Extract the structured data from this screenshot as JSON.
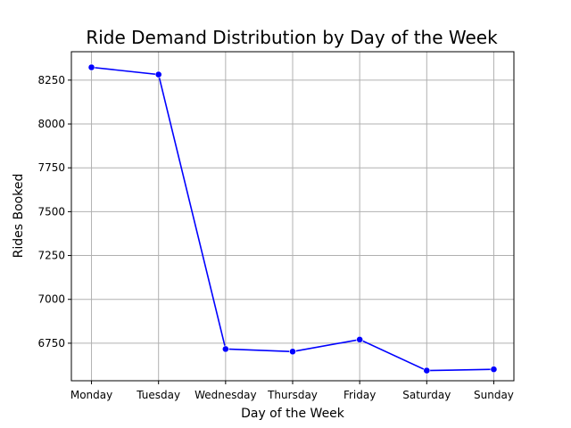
{
  "chart_data": {
    "type": "line",
    "title": "Ride Demand Distribution by Day of the Week",
    "xlabel": "Day of the Week",
    "ylabel": "Rides Booked",
    "categories": [
      "Monday",
      "Tuesday",
      "Wednesday",
      "Thursday",
      "Friday",
      "Saturday",
      "Sunday"
    ],
    "series": [
      {
        "values": [
          8323,
          8282,
          6717,
          6702,
          6771,
          6594,
          6601
        ],
        "color": "#0000ff",
        "marker": "circle"
      }
    ],
    "y_ticks": [
      6750,
      7000,
      7250,
      7500,
      7750,
      8000,
      8250
    ],
    "ylim": [
      6536,
      8412
    ],
    "grid": true,
    "legend": "none"
  }
}
